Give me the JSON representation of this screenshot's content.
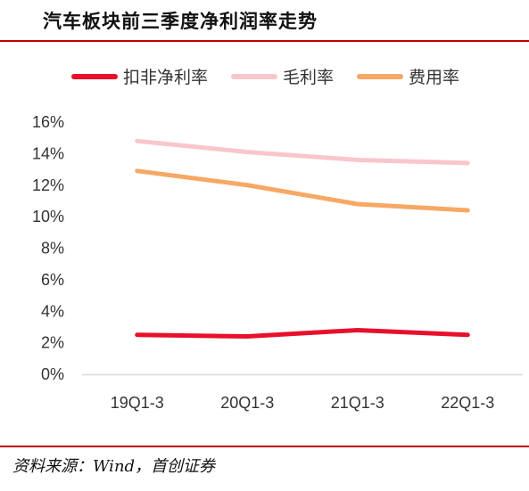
{
  "title": "汽车板块前三季度净利润率走势",
  "source": "资料来源：Wind，首创证券",
  "colors": {
    "accent_rule": "#c00000"
  },
  "chart_data": {
    "type": "line",
    "categories": [
      "19Q1-3",
      "20Q1-3",
      "21Q1-3",
      "22Q1-3"
    ],
    "ylim": [
      0,
      16
    ],
    "yticks": [
      0,
      2,
      4,
      6,
      8,
      10,
      12,
      14,
      16
    ],
    "ytick_labels": [
      "0%",
      "2%",
      "4%",
      "6%",
      "8%",
      "10%",
      "12%",
      "14%",
      "16%"
    ],
    "grid": false,
    "legend_position": "top",
    "series": [
      {
        "name": "扣非净利率",
        "color": "#e8102a",
        "values": [
          2.5,
          2.4,
          2.8,
          2.5
        ]
      },
      {
        "name": "毛利率",
        "color": "#f9c6cc",
        "values": [
          14.8,
          14.1,
          13.6,
          13.4
        ]
      },
      {
        "name": "费用率",
        "color": "#f7a864",
        "values": [
          12.9,
          12.0,
          10.8,
          10.4
        ]
      }
    ]
  }
}
